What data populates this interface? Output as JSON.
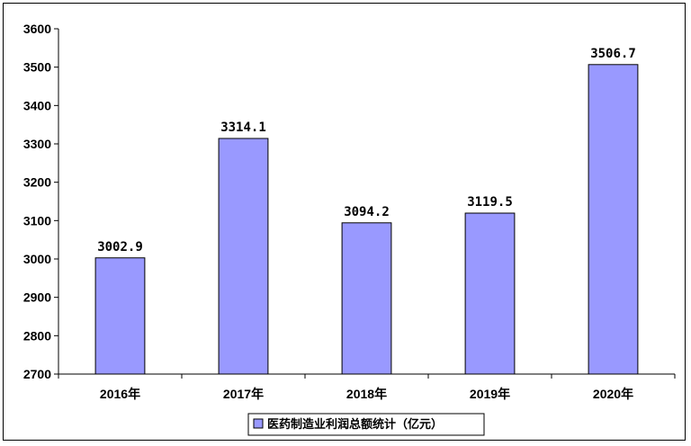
{
  "chart_data": {
    "type": "bar",
    "categories": [
      "2016年",
      "2017年",
      "2018年",
      "2019年",
      "2020年"
    ],
    "values": [
      3002.9,
      3314.1,
      3094.2,
      3119.5,
      3506.7
    ],
    "data_labels": [
      "3002.9",
      "3314.1",
      "3094.2",
      "3119.5",
      "3506.7"
    ],
    "series": [
      {
        "name": "医药制造业利润总额统计（亿元）",
        "values": [
          3002.9,
          3314.1,
          3094.2,
          3119.5,
          3506.7
        ]
      }
    ],
    "ylim": [
      2700,
      3600
    ],
    "yticks": [
      "2700",
      "2800",
      "2900",
      "3000",
      "3100",
      "3200",
      "3300",
      "3400",
      "3500",
      "3600"
    ],
    "grid": false,
    "legend_position": "bottom",
    "bar_color": "#9999ff"
  }
}
